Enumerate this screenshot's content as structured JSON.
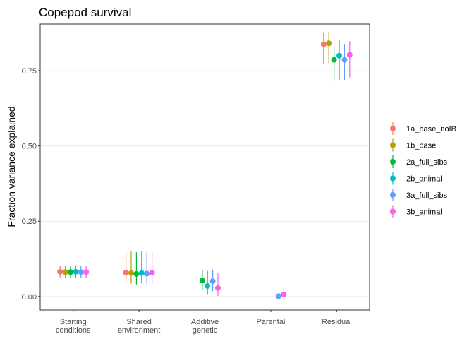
{
  "chart_data": {
    "type": "scatter",
    "subtype": "pointrange",
    "title": "Copepod survival",
    "xlabel": "",
    "ylabel": "Fraction variance explained",
    "ylim": [
      -0.045,
      0.905
    ],
    "yticks": [
      0.0,
      0.25,
      0.5,
      0.75
    ],
    "ytick_labels": [
      "0.00",
      "0.25",
      "0.50",
      "0.75"
    ],
    "categories": [
      [
        "Starting",
        "conditions"
      ],
      [
        "Shared",
        "environment"
      ],
      [
        "Additive",
        "genetic"
      ],
      [
        "Parental"
      ],
      [
        "Residual"
      ]
    ],
    "grid": "horizontal",
    "legend_position": "right",
    "series": [
      {
        "name": "1a_base_noIB",
        "color": "#F8766D",
        "values": [
          0.082,
          0.079,
          null,
          null,
          0.838
        ],
        "lower": [
          0.062,
          0.044,
          null,
          null,
          0.773
        ],
        "upper": [
          0.103,
          0.149,
          null,
          null,
          0.875
        ]
      },
      {
        "name": "1b_base",
        "color": "#B79F00",
        "values": [
          0.081,
          0.078,
          null,
          null,
          0.841
        ],
        "lower": [
          0.061,
          0.043,
          null,
          null,
          0.775
        ],
        "upper": [
          0.102,
          0.15,
          null,
          null,
          0.877
        ]
      },
      {
        "name": "2a_full_sibs",
        "color": "#00BA38",
        "values": [
          0.081,
          0.075,
          0.053,
          null,
          0.786
        ],
        "lower": [
          0.061,
          0.04,
          0.022,
          null,
          0.718
        ],
        "upper": [
          0.102,
          0.147,
          0.089,
          null,
          0.83
        ]
      },
      {
        "name": "2b_animal",
        "color": "#00BFC4",
        "values": [
          0.082,
          0.078,
          0.035,
          null,
          0.8
        ],
        "lower": [
          0.062,
          0.043,
          0.008,
          null,
          0.72
        ],
        "upper": [
          0.104,
          0.152,
          0.085,
          null,
          0.853
        ]
      },
      {
        "name": "3a_full_sibs",
        "color": "#619CFF",
        "values": [
          0.081,
          0.076,
          0.051,
          0.001,
          0.786
        ],
        "lower": [
          0.061,
          0.041,
          0.018,
          -0.003,
          0.72
        ],
        "upper": [
          0.102,
          0.146,
          0.089,
          0.006,
          0.838
        ]
      },
      {
        "name": "3b_animal",
        "color": "#F564E3",
        "values": [
          0.081,
          0.079,
          0.028,
          0.007,
          0.803
        ],
        "lower": [
          0.061,
          0.043,
          0.002,
          -0.001,
          0.728
        ],
        "upper": [
          0.102,
          0.149,
          0.077,
          0.025,
          0.848
        ]
      }
    ]
  }
}
